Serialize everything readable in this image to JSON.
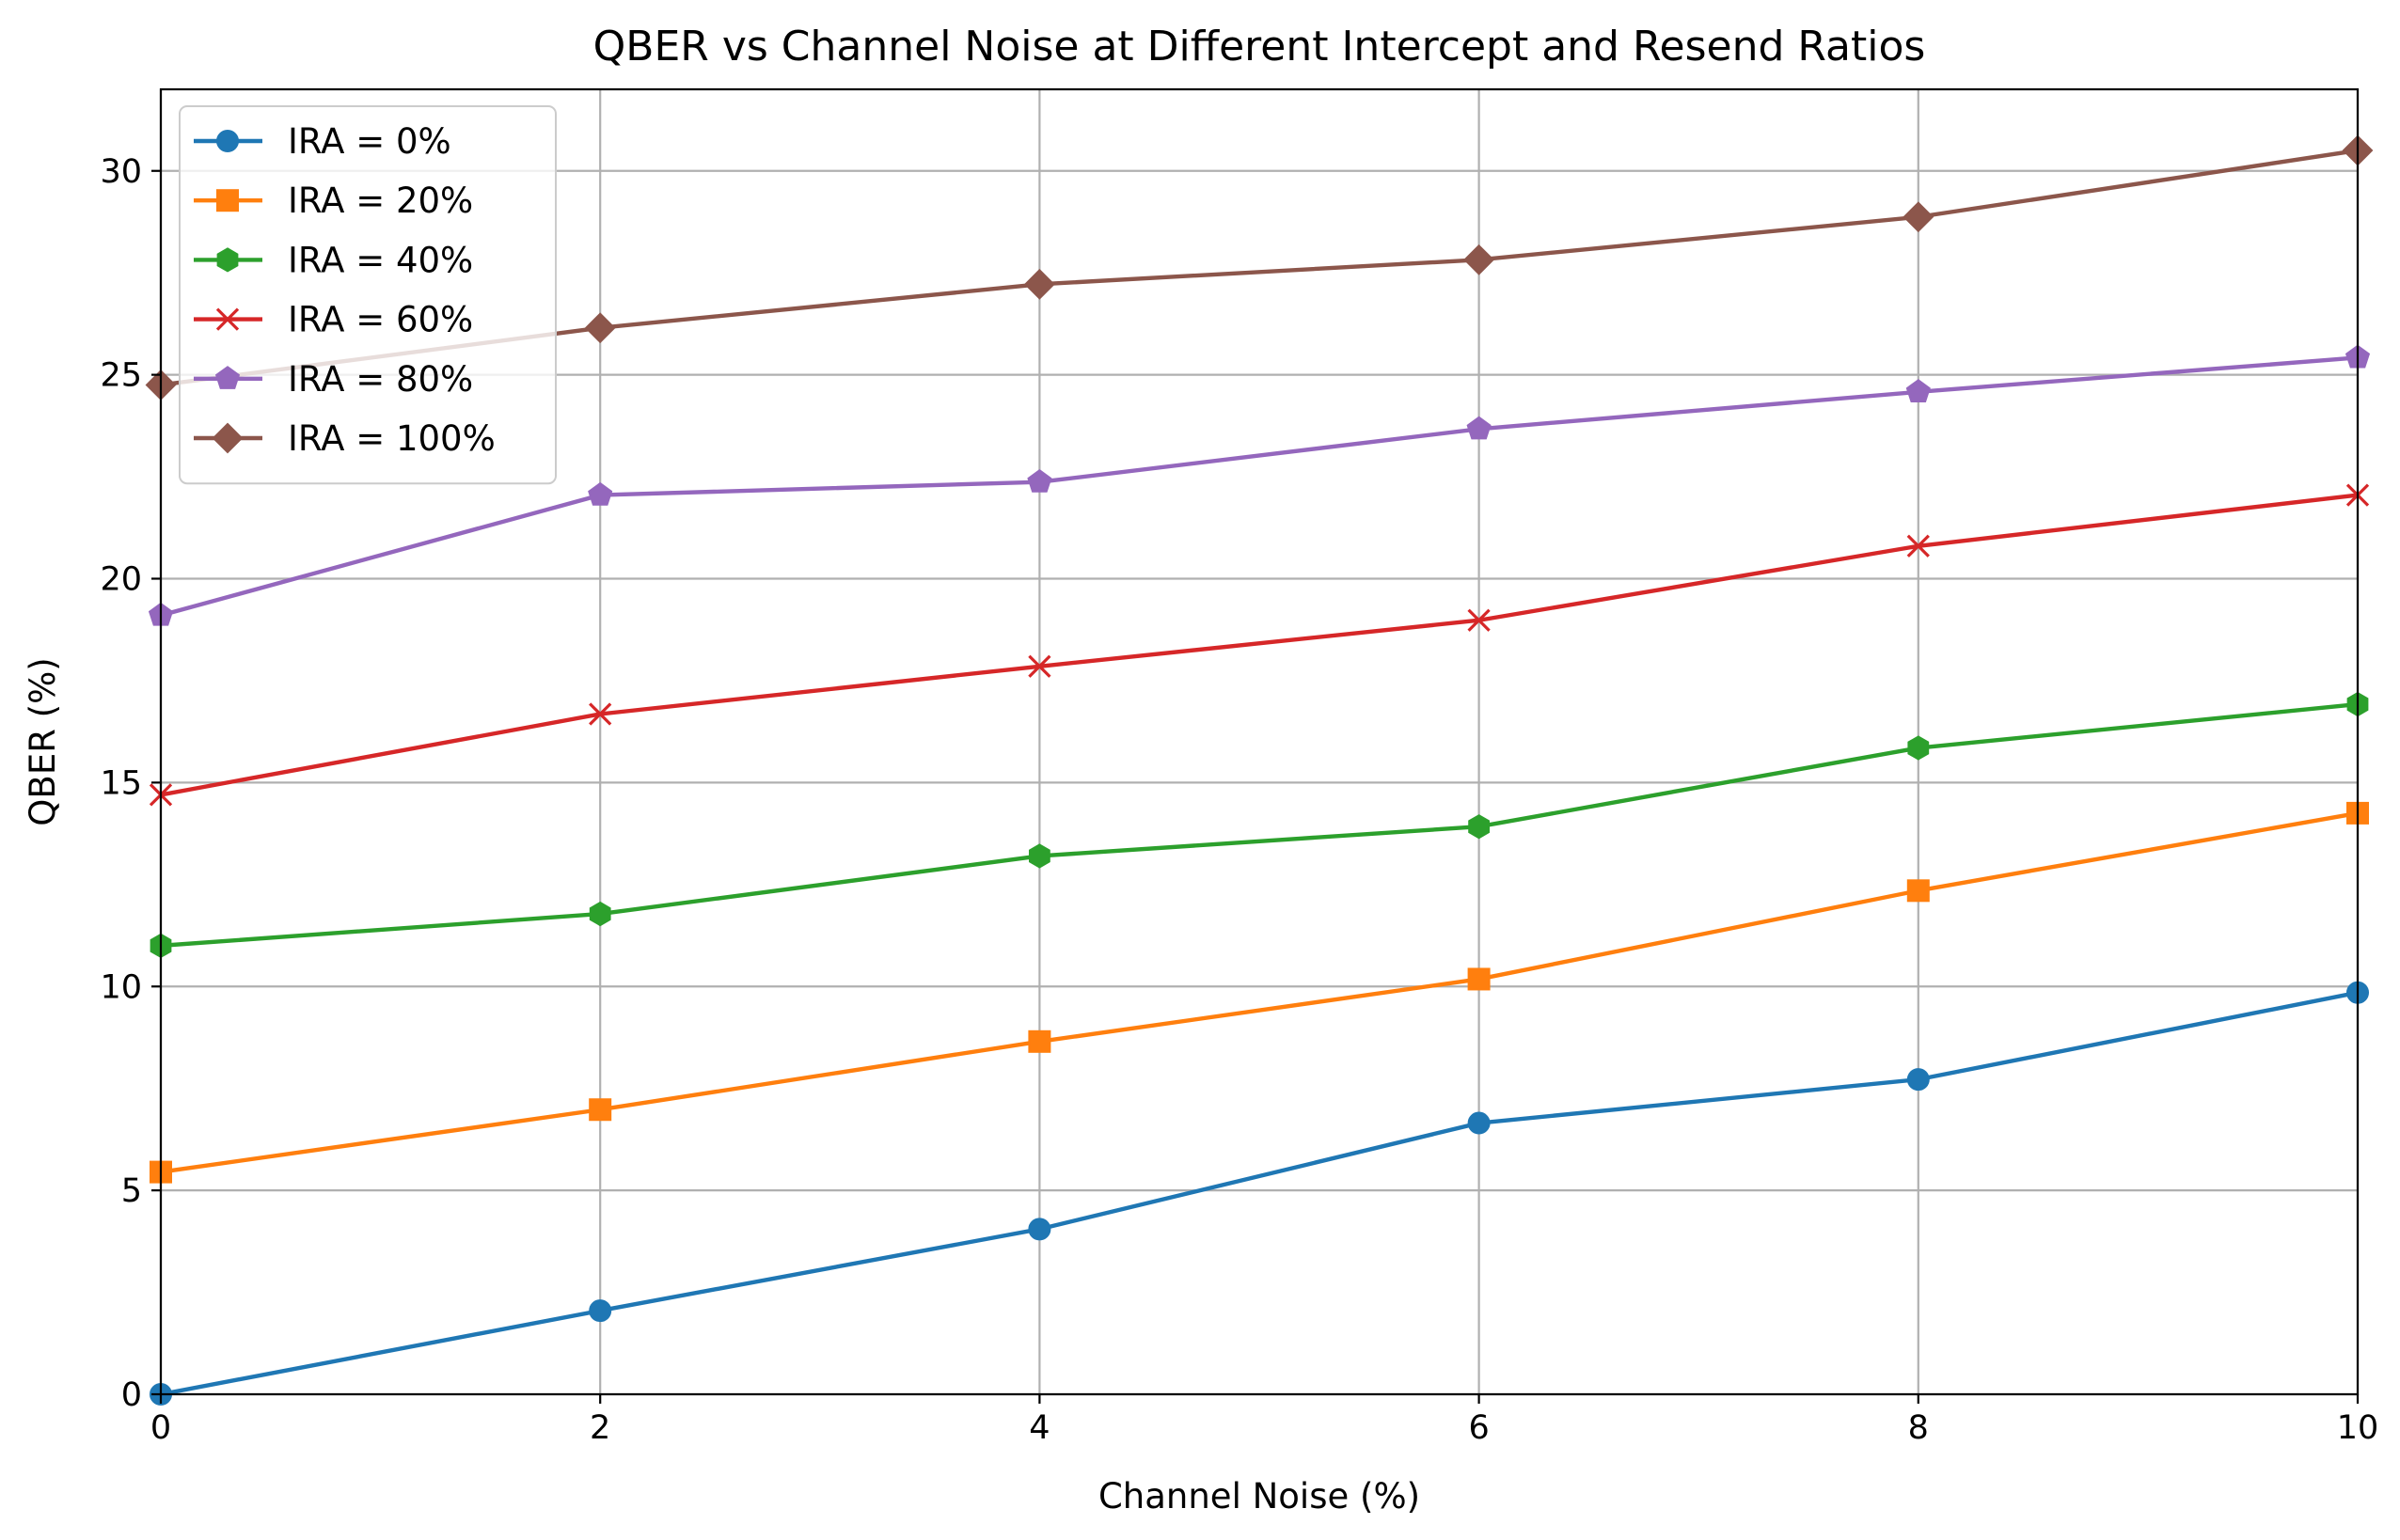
{
  "chart_data": {
    "type": "line",
    "title": "QBER vs Channel Noise at Different Intercept and Resend Ratios",
    "xlabel": "Channel Noise (%)",
    "ylabel": "QBER (%)",
    "xlim": [
      0,
      10
    ],
    "ylim": [
      0,
      32
    ],
    "xticks": [
      0,
      2,
      4,
      6,
      8,
      10
    ],
    "yticks": [
      0,
      5,
      10,
      15,
      20,
      25,
      30
    ],
    "x": [
      0,
      2,
      4,
      6,
      8,
      10
    ],
    "grid": true,
    "legend_position": "top-left",
    "series": [
      {
        "name": "IRA = 0%",
        "color": "#1f77b4",
        "marker": "circle",
        "values": [
          0.0,
          2.05,
          4.05,
          6.65,
          7.72,
          9.85
        ]
      },
      {
        "name": "IRA = 20%",
        "color": "#ff7f0e",
        "marker": "square",
        "values": [
          5.45,
          6.98,
          8.65,
          10.18,
          12.35,
          14.25
        ]
      },
      {
        "name": "IRA = 40%",
        "color": "#2ca02c",
        "marker": "hexagon",
        "values": [
          11.0,
          11.78,
          13.2,
          13.92,
          15.85,
          16.92
        ]
      },
      {
        "name": "IRA = 60%",
        "color": "#d62728",
        "marker": "x",
        "values": [
          14.7,
          16.68,
          17.85,
          18.98,
          20.8,
          22.05
        ]
      },
      {
        "name": "IRA = 80%",
        "color": "#9467bd",
        "marker": "pentagon",
        "values": [
          19.1,
          22.05,
          22.37,
          23.67,
          24.58,
          25.42
        ]
      },
      {
        "name": "IRA = 100%",
        "color": "#8c564b",
        "marker": "diamond",
        "values": [
          24.75,
          26.15,
          27.22,
          27.82,
          28.87,
          30.5
        ]
      }
    ]
  }
}
